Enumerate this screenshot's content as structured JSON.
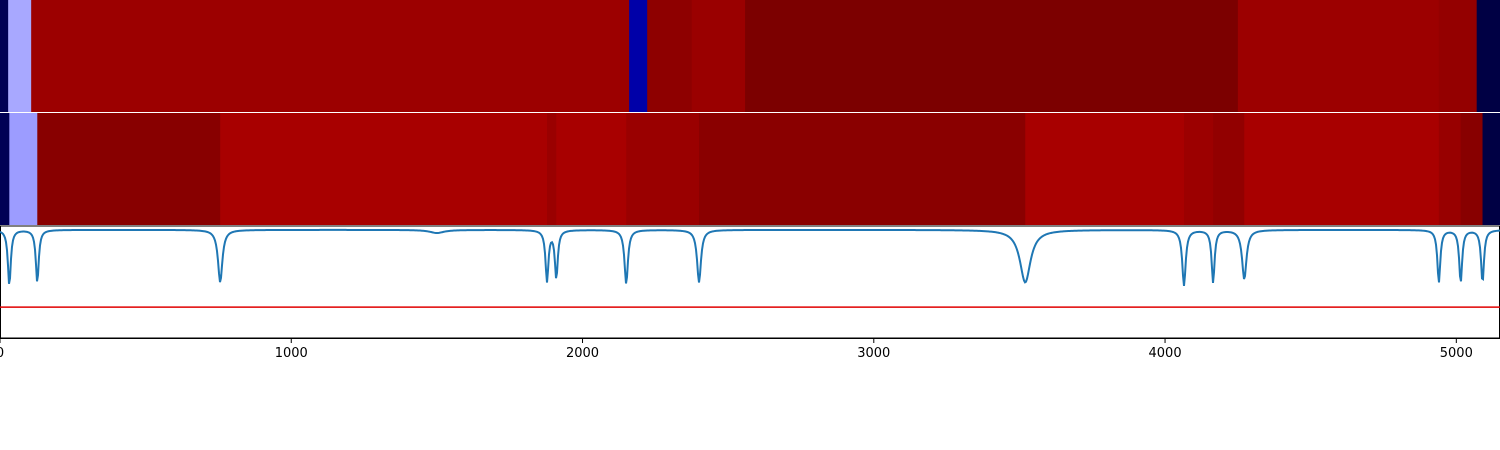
{
  "chart_data": {
    "type": "heatmap",
    "xlim": [
      0,
      5150
    ],
    "x_ticks": [
      0,
      1000,
      2000,
      3000,
      4000,
      5000
    ],
    "x_tick_labels": [
      "0",
      "1000",
      "2000",
      "3000",
      "4000",
      "5000"
    ],
    "segment_tracks": [
      {
        "segments": [
          {
            "start": 0,
            "end": 28,
            "color": "#000055"
          },
          {
            "start": 28,
            "end": 107,
            "color": "#a8a8ff"
          },
          {
            "start": 107,
            "end": 2160,
            "color": "#9c0000"
          },
          {
            "start": 2160,
            "end": 2222,
            "color": "#0000a8"
          },
          {
            "start": 2222,
            "end": 2375,
            "color": "#8e0000"
          },
          {
            "start": 2375,
            "end": 2558,
            "color": "#9a0000"
          },
          {
            "start": 2558,
            "end": 4250,
            "color": "#7c0000"
          },
          {
            "start": 4250,
            "end": 4940,
            "color": "#9c0000"
          },
          {
            "start": 4940,
            "end": 5070,
            "color": "#940000"
          },
          {
            "start": 5070,
            "end": 5150,
            "color": "#000044"
          }
        ]
      },
      {
        "segments": [
          {
            "start": 0,
            "end": 32,
            "color": "#000055"
          },
          {
            "start": 32,
            "end": 128,
            "color": "#9c9cff"
          },
          {
            "start": 128,
            "end": 756,
            "color": "#880000"
          },
          {
            "start": 756,
            "end": 1878,
            "color": "#a80000"
          },
          {
            "start": 1878,
            "end": 1910,
            "color": "#9a0000"
          },
          {
            "start": 1910,
            "end": 2150,
            "color": "#a80000"
          },
          {
            "start": 2150,
            "end": 2400,
            "color": "#9a0000"
          },
          {
            "start": 2400,
            "end": 3520,
            "color": "#8a0000"
          },
          {
            "start": 3520,
            "end": 4065,
            "color": "#a80000"
          },
          {
            "start": 4065,
            "end": 4165,
            "color": "#9c0000"
          },
          {
            "start": 4165,
            "end": 4272,
            "color": "#920000"
          },
          {
            "start": 4272,
            "end": 4940,
            "color": "#a80000"
          },
          {
            "start": 4940,
            "end": 5015,
            "color": "#980000"
          },
          {
            "start": 5015,
            "end": 5090,
            "color": "#880000"
          },
          {
            "start": 5090,
            "end": 5150,
            "color": "#000044"
          }
        ]
      }
    ],
    "line_panel": {
      "ylim": [
        -1.4,
        0.05
      ],
      "series_color": "#1f77b4",
      "baseline": 0,
      "dips": [
        {
          "x": 32,
          "depth": -0.72,
          "width": 6
        },
        {
          "x": 128,
          "depth": -0.68,
          "width": 6
        },
        {
          "x": 756,
          "depth": -0.68,
          "width": 9
        },
        {
          "x": 1500,
          "depth": -0.04,
          "width": 30
        },
        {
          "x": 1878,
          "depth": -0.66,
          "width": 6
        },
        {
          "x": 1910,
          "depth": -0.62,
          "width": 6
        },
        {
          "x": 2150,
          "depth": -0.7,
          "width": 7
        },
        {
          "x": 2400,
          "depth": -0.68,
          "width": 8
        },
        {
          "x": 3520,
          "depth": -0.68,
          "width": 22
        },
        {
          "x": 4065,
          "depth": -0.72,
          "width": 7
        },
        {
          "x": 4165,
          "depth": -0.68,
          "width": 6
        },
        {
          "x": 4272,
          "depth": -0.64,
          "width": 9
        },
        {
          "x": 4940,
          "depth": -0.68,
          "width": 6
        },
        {
          "x": 5015,
          "depth": -0.68,
          "width": 6
        },
        {
          "x": 5090,
          "depth": -0.68,
          "width": 6
        }
      ],
      "threshold": {
        "y": -1.0,
        "color": "#e00000"
      }
    }
  }
}
